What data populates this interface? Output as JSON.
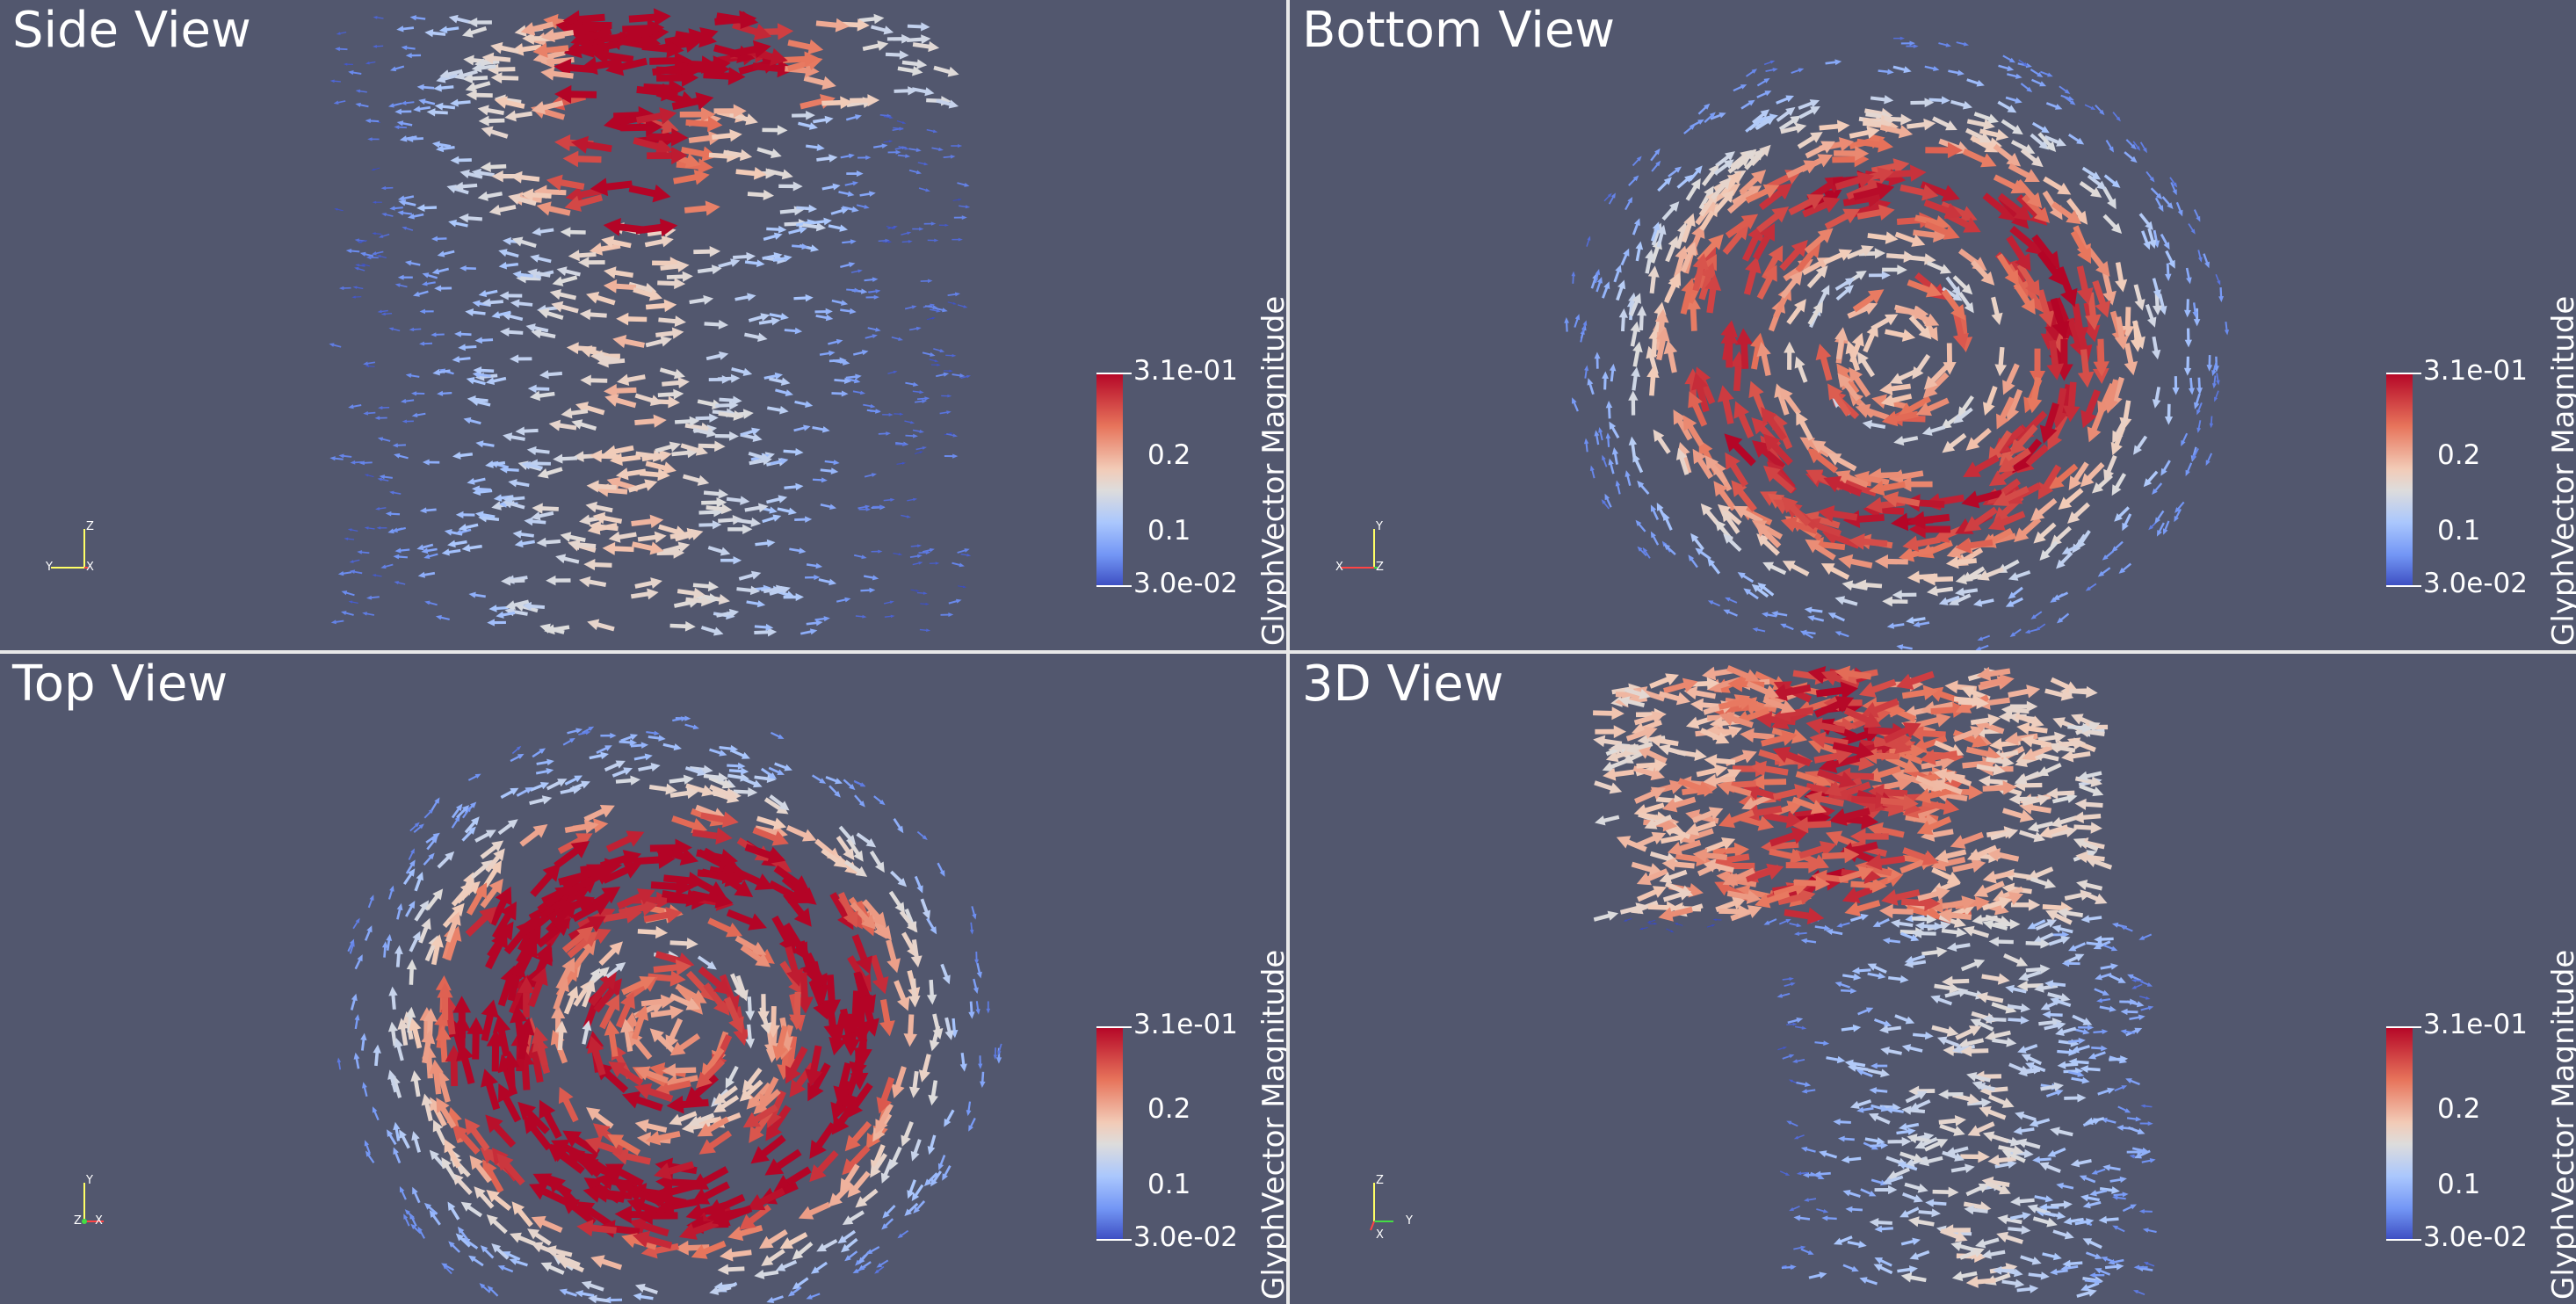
{
  "views": [
    {
      "title": "Side View",
      "axes": {
        "up": "Z",
        "left": "Y",
        "right": "X"
      },
      "style": "side"
    },
    {
      "title": "Bottom View",
      "axes": {
        "up": "Y",
        "left": "X",
        "right": "Z"
      },
      "style": "bottom"
    },
    {
      "title": "Top View",
      "axes": {
        "up": "Y",
        "left": "Z",
        "right": "X"
      },
      "style": "top"
    },
    {
      "title": "3D View",
      "axes": {
        "up": "Z",
        "left": "X",
        "right": "Y"
      },
      "style": "3d"
    }
  ],
  "colorbar": {
    "title": "GlyphVector Magnitude",
    "max_label": "3.1e-01",
    "mid_high_label": "0.2",
    "mid_low_label": "0.1",
    "min_label": "3.0e-02",
    "colors": [
      "#b40426",
      "#e7745b",
      "#f2cbb7",
      "#dddcdc",
      "#aac7fd",
      "#7396f5",
      "#3b4cc0"
    ]
  },
  "colors": {
    "background": "#52576e",
    "divider": "#e8e8e8",
    "text": "#ffffff"
  }
}
